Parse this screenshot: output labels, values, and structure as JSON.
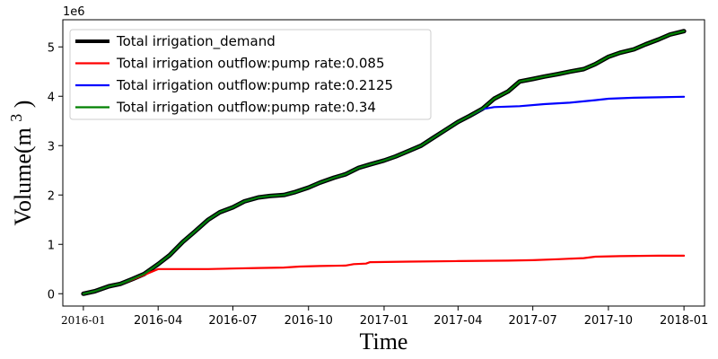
{
  "chart_data": {
    "type": "line",
    "title": "",
    "xlabel": "Time",
    "ylabel": "Volume(m",
    "ylabel_superscript": "3",
    "ylabel_close": ")",
    "y_scale_label": "1e6",
    "xlim": [
      "2015-12-07",
      "2018-01-26"
    ],
    "ylim": [
      -250000,
      5550000
    ],
    "x_ticks": [
      "2016-01",
      "2016-04",
      "2016-07",
      "2016-10",
      "2017-01",
      "2017-04",
      "2017-07",
      "2017-10",
      "2018-01"
    ],
    "x_tick_dates": [
      "2016-01-01",
      "2016-04-01",
      "2016-07-01",
      "2016-10-01",
      "2017-01-01",
      "2017-04-01",
      "2017-07-01",
      "2017-10-01",
      "2018-01-01"
    ],
    "y_ticks": [
      0,
      1000000,
      2000000,
      3000000,
      4000000,
      5000000
    ],
    "y_tick_labels": [
      "0",
      "1",
      "2",
      "3",
      "4",
      "5"
    ],
    "grid": false,
    "legend_position": "top-left",
    "series": [
      {
        "name": "Total irrigation_demand",
        "color": "#000000",
        "width": 5,
        "points": [
          [
            "2016-01-01",
            0
          ],
          [
            "2016-01-15",
            50000
          ],
          [
            "2016-02-01",
            150000
          ],
          [
            "2016-02-15",
            200000
          ],
          [
            "2016-03-01",
            300000
          ],
          [
            "2016-03-15",
            400000
          ],
          [
            "2016-04-01",
            600000
          ],
          [
            "2016-04-15",
            780000
          ],
          [
            "2016-05-01",
            1050000
          ],
          [
            "2016-05-15",
            1250000
          ],
          [
            "2016-06-01",
            1500000
          ],
          [
            "2016-06-15",
            1650000
          ],
          [
            "2016-07-01",
            1750000
          ],
          [
            "2016-07-15",
            1870000
          ],
          [
            "2016-08-01",
            1950000
          ],
          [
            "2016-08-15",
            1980000
          ],
          [
            "2016-09-01",
            2000000
          ],
          [
            "2016-09-15",
            2060000
          ],
          [
            "2016-10-01",
            2150000
          ],
          [
            "2016-10-15",
            2250000
          ],
          [
            "2016-11-01",
            2350000
          ],
          [
            "2016-11-15",
            2420000
          ],
          [
            "2016-12-01",
            2550000
          ],
          [
            "2016-12-15",
            2620000
          ],
          [
            "2017-01-01",
            2700000
          ],
          [
            "2017-01-15",
            2780000
          ],
          [
            "2017-02-01",
            2900000
          ],
          [
            "2017-02-15",
            3000000
          ],
          [
            "2017-03-01",
            3150000
          ],
          [
            "2017-03-15",
            3300000
          ],
          [
            "2017-04-01",
            3480000
          ],
          [
            "2017-04-15",
            3600000
          ],
          [
            "2017-05-01",
            3750000
          ],
          [
            "2017-05-15",
            3950000
          ],
          [
            "2017-06-01",
            4100000
          ],
          [
            "2017-06-15",
            4300000
          ],
          [
            "2017-07-01",
            4350000
          ],
          [
            "2017-07-15",
            4400000
          ],
          [
            "2017-08-01",
            4450000
          ],
          [
            "2017-08-15",
            4500000
          ],
          [
            "2017-09-01",
            4550000
          ],
          [
            "2017-09-15",
            4650000
          ],
          [
            "2017-10-01",
            4800000
          ],
          [
            "2017-10-15",
            4880000
          ],
          [
            "2017-11-01",
            4950000
          ],
          [
            "2017-11-15",
            5050000
          ],
          [
            "2017-12-01",
            5150000
          ],
          [
            "2017-12-15",
            5250000
          ],
          [
            "2018-01-01",
            5320000
          ]
        ]
      },
      {
        "name": "Total irrigation outflow:pump rate:0.085",
        "color": "#ff0000",
        "width": 2.2,
        "points": [
          [
            "2016-01-01",
            0
          ],
          [
            "2016-01-15",
            50000
          ],
          [
            "2016-02-01",
            150000
          ],
          [
            "2016-02-15",
            200000
          ],
          [
            "2016-03-01",
            290000
          ],
          [
            "2016-03-15",
            380000
          ],
          [
            "2016-04-01",
            500000
          ],
          [
            "2016-05-01",
            500000
          ],
          [
            "2016-06-01",
            500000
          ],
          [
            "2016-07-01",
            510000
          ],
          [
            "2016-08-01",
            520000
          ],
          [
            "2016-09-01",
            530000
          ],
          [
            "2016-09-20",
            550000
          ],
          [
            "2016-10-15",
            560000
          ],
          [
            "2016-11-15",
            570000
          ],
          [
            "2016-11-25",
            600000
          ],
          [
            "2016-12-10",
            610000
          ],
          [
            "2016-12-15",
            640000
          ],
          [
            "2017-02-01",
            650000
          ],
          [
            "2017-04-01",
            660000
          ],
          [
            "2017-06-01",
            670000
          ],
          [
            "2017-07-01",
            680000
          ],
          [
            "2017-08-01",
            700000
          ],
          [
            "2017-09-01",
            720000
          ],
          [
            "2017-09-15",
            750000
          ],
          [
            "2017-10-15",
            760000
          ],
          [
            "2017-12-01",
            770000
          ],
          [
            "2018-01-01",
            770000
          ]
        ]
      },
      {
        "name": "Total irrigation outflow:pump rate:0.2125",
        "color": "#0000ff",
        "width": 2.2,
        "points": [
          [
            "2016-01-01",
            0
          ],
          [
            "2016-01-15",
            50000
          ],
          [
            "2016-02-01",
            150000
          ],
          [
            "2016-02-15",
            200000
          ],
          [
            "2016-03-01",
            300000
          ],
          [
            "2016-03-15",
            400000
          ],
          [
            "2016-04-01",
            600000
          ],
          [
            "2016-04-15",
            780000
          ],
          [
            "2016-05-01",
            1050000
          ],
          [
            "2016-05-15",
            1250000
          ],
          [
            "2016-06-01",
            1500000
          ],
          [
            "2016-06-15",
            1650000
          ],
          [
            "2016-07-01",
            1750000
          ],
          [
            "2016-07-15",
            1870000
          ],
          [
            "2016-08-01",
            1950000
          ],
          [
            "2016-08-15",
            1980000
          ],
          [
            "2016-09-01",
            2000000
          ],
          [
            "2016-09-15",
            2060000
          ],
          [
            "2016-10-01",
            2150000
          ],
          [
            "2016-10-15",
            2250000
          ],
          [
            "2016-11-01",
            2350000
          ],
          [
            "2016-11-15",
            2420000
          ],
          [
            "2016-12-01",
            2550000
          ],
          [
            "2016-12-15",
            2620000
          ],
          [
            "2017-01-01",
            2700000
          ],
          [
            "2017-01-15",
            2780000
          ],
          [
            "2017-02-01",
            2900000
          ],
          [
            "2017-02-15",
            3000000
          ],
          [
            "2017-03-01",
            3150000
          ],
          [
            "2017-03-15",
            3300000
          ],
          [
            "2017-04-01",
            3480000
          ],
          [
            "2017-04-15",
            3600000
          ],
          [
            "2017-05-01",
            3740000
          ],
          [
            "2017-05-15",
            3780000
          ],
          [
            "2017-06-15",
            3800000
          ],
          [
            "2017-07-15",
            3840000
          ],
          [
            "2017-08-15",
            3870000
          ],
          [
            "2017-09-15",
            3920000
          ],
          [
            "2017-10-01",
            3950000
          ],
          [
            "2017-11-01",
            3970000
          ],
          [
            "2017-12-01",
            3980000
          ],
          [
            "2018-01-01",
            3990000
          ]
        ]
      },
      {
        "name": "Total irrigation outflow:pump rate:0.34",
        "color": "#008000",
        "width": 2.2,
        "points": [
          [
            "2016-01-01",
            0
          ],
          [
            "2016-01-15",
            50000
          ],
          [
            "2016-02-01",
            150000
          ],
          [
            "2016-02-15",
            200000
          ],
          [
            "2016-03-01",
            300000
          ],
          [
            "2016-03-15",
            400000
          ],
          [
            "2016-04-01",
            600000
          ],
          [
            "2016-04-15",
            780000
          ],
          [
            "2016-05-01",
            1050000
          ],
          [
            "2016-05-15",
            1250000
          ],
          [
            "2016-06-01",
            1500000
          ],
          [
            "2016-06-15",
            1650000
          ],
          [
            "2016-07-01",
            1750000
          ],
          [
            "2016-07-15",
            1870000
          ],
          [
            "2016-08-01",
            1950000
          ],
          [
            "2016-08-15",
            1980000
          ],
          [
            "2016-09-01",
            2000000
          ],
          [
            "2016-09-15",
            2060000
          ],
          [
            "2016-10-01",
            2150000
          ],
          [
            "2016-10-15",
            2250000
          ],
          [
            "2016-11-01",
            2350000
          ],
          [
            "2016-11-15",
            2420000
          ],
          [
            "2016-12-01",
            2550000
          ],
          [
            "2016-12-15",
            2620000
          ],
          [
            "2017-01-01",
            2700000
          ],
          [
            "2017-01-15",
            2780000
          ],
          [
            "2017-02-01",
            2900000
          ],
          [
            "2017-02-15",
            3000000
          ],
          [
            "2017-03-01",
            3150000
          ],
          [
            "2017-03-15",
            3300000
          ],
          [
            "2017-04-01",
            3480000
          ],
          [
            "2017-04-15",
            3600000
          ],
          [
            "2017-05-01",
            3750000
          ],
          [
            "2017-05-15",
            3950000
          ],
          [
            "2017-06-01",
            4100000
          ],
          [
            "2017-06-15",
            4300000
          ],
          [
            "2017-07-01",
            4350000
          ],
          [
            "2017-07-15",
            4400000
          ],
          [
            "2017-08-01",
            4450000
          ],
          [
            "2017-08-15",
            4500000
          ],
          [
            "2017-09-01",
            4550000
          ],
          [
            "2017-09-15",
            4650000
          ],
          [
            "2017-10-01",
            4800000
          ],
          [
            "2017-10-15",
            4880000
          ],
          [
            "2017-11-01",
            4950000
          ],
          [
            "2017-11-15",
            5050000
          ],
          [
            "2017-12-01",
            5150000
          ],
          [
            "2017-12-15",
            5250000
          ],
          [
            "2018-01-01",
            5320000
          ]
        ]
      }
    ]
  }
}
